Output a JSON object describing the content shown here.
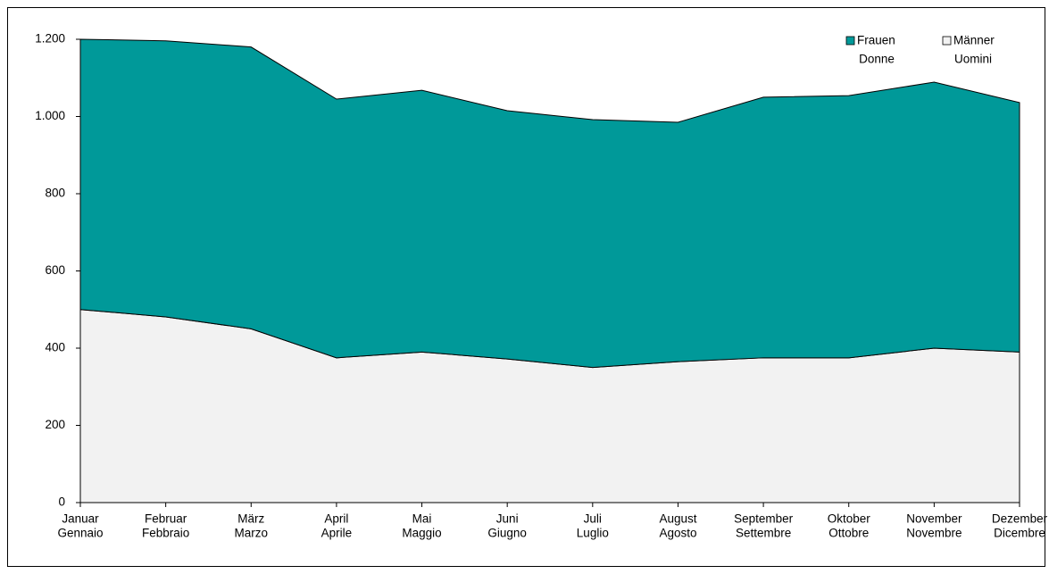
{
  "chart_data": {
    "type": "area",
    "stacked": true,
    "categories": [
      [
        "Januar",
        "Gennaio"
      ],
      [
        "Februar",
        "Febbraio"
      ],
      [
        "März",
        "Marzo"
      ],
      [
        "April",
        "Aprile"
      ],
      [
        "Mai",
        "Maggio"
      ],
      [
        "Juni",
        "Giugno"
      ],
      [
        "Juli",
        "Luglio"
      ],
      [
        "August",
        "Agosto"
      ],
      [
        "September",
        "Settembre"
      ],
      [
        "Oktober",
        "Ottobre"
      ],
      [
        "November",
        "Novembre"
      ],
      [
        "Dezember",
        "Dicembre"
      ]
    ],
    "series": [
      {
        "name": [
          "Frauen",
          "Donne"
        ],
        "color": "#009999",
        "values": [
          700,
          715,
          730,
          670,
          678,
          643,
          642,
          620,
          675,
          679,
          689,
          646
        ]
      },
      {
        "name": [
          "Männer",
          "Uomini"
        ],
        "color": "#f2f2f2",
        "values": [
          500,
          481,
          450,
          375,
          390,
          372,
          350,
          365,
          375,
          375,
          400,
          390
        ]
      }
    ],
    "ylim": [
      0,
      1200
    ],
    "yticks": [
      0,
      200,
      400,
      600,
      800,
      {
        "value": 1000,
        "label": "1.000"
      },
      {
        "value": 1200,
        "label": "1.200"
      }
    ],
    "legend": "top-right"
  }
}
